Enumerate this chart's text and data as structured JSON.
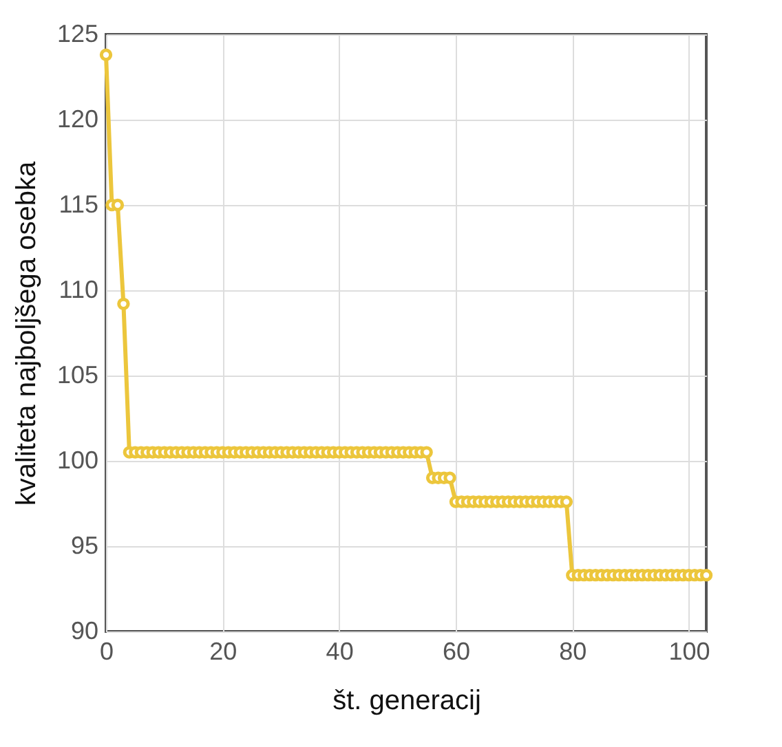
{
  "chart_data": {
    "type": "line",
    "xlabel": "št. generacij",
    "ylabel": "kvaliteta najboljšega osebka",
    "x": [
      0,
      1,
      2,
      3,
      4,
      5,
      6,
      7,
      8,
      9,
      10,
      11,
      12,
      13,
      14,
      15,
      16,
      17,
      18,
      19,
      20,
      21,
      22,
      23,
      24,
      25,
      26,
      27,
      28,
      29,
      30,
      31,
      32,
      33,
      34,
      35,
      36,
      37,
      38,
      39,
      40,
      41,
      42,
      43,
      44,
      45,
      46,
      47,
      48,
      49,
      50,
      51,
      52,
      53,
      54,
      55,
      56,
      57,
      58,
      59,
      60,
      61,
      62,
      63,
      64,
      65,
      66,
      67,
      68,
      69,
      70,
      71,
      72,
      73,
      74,
      75,
      76,
      77,
      78,
      79,
      80,
      81,
      82,
      83,
      84,
      85,
      86,
      87,
      88,
      89,
      90,
      91,
      92,
      93,
      94,
      95,
      96,
      97,
      98,
      99,
      100,
      101,
      102,
      103
    ],
    "series": [
      {
        "color": "#ecc63c",
        "values": [
          123.8,
          115,
          115,
          109.2,
          100.5,
          100.5,
          100.5,
          100.5,
          100.5,
          100.5,
          100.5,
          100.5,
          100.5,
          100.5,
          100.5,
          100.5,
          100.5,
          100.5,
          100.5,
          100.5,
          100.5,
          100.5,
          100.5,
          100.5,
          100.5,
          100.5,
          100.5,
          100.5,
          100.5,
          100.5,
          100.5,
          100.5,
          100.5,
          100.5,
          100.5,
          100.5,
          100.5,
          100.5,
          100.5,
          100.5,
          100.5,
          100.5,
          100.5,
          100.5,
          100.5,
          100.5,
          100.5,
          100.5,
          100.5,
          100.5,
          100.5,
          100.5,
          100.5,
          100.5,
          100.5,
          100.5,
          99,
          99,
          99,
          99,
          97.6,
          97.6,
          97.6,
          97.6,
          97.6,
          97.6,
          97.6,
          97.6,
          97.6,
          97.6,
          97.6,
          97.6,
          97.6,
          97.6,
          97.6,
          97.6,
          97.6,
          97.6,
          97.6,
          97.6,
          93.3,
          93.3,
          93.3,
          93.3,
          93.3,
          93.3,
          93.3,
          93.3,
          93.3,
          93.3,
          93.3,
          93.3,
          93.3,
          93.3,
          93.3,
          93.3,
          93.3,
          93.3,
          93.3,
          93.3,
          93.3,
          93.3,
          93.3,
          93.3
        ]
      }
    ],
    "xlim": [
      0,
      103
    ],
    "xticks": [
      0,
      20,
      40,
      60,
      80,
      100
    ],
    "ylim": [
      90,
      125
    ],
    "yticks": [
      90,
      95,
      100,
      105,
      110,
      115,
      120,
      125
    ],
    "grid": true,
    "marker": "circle",
    "line_style": "solid"
  }
}
